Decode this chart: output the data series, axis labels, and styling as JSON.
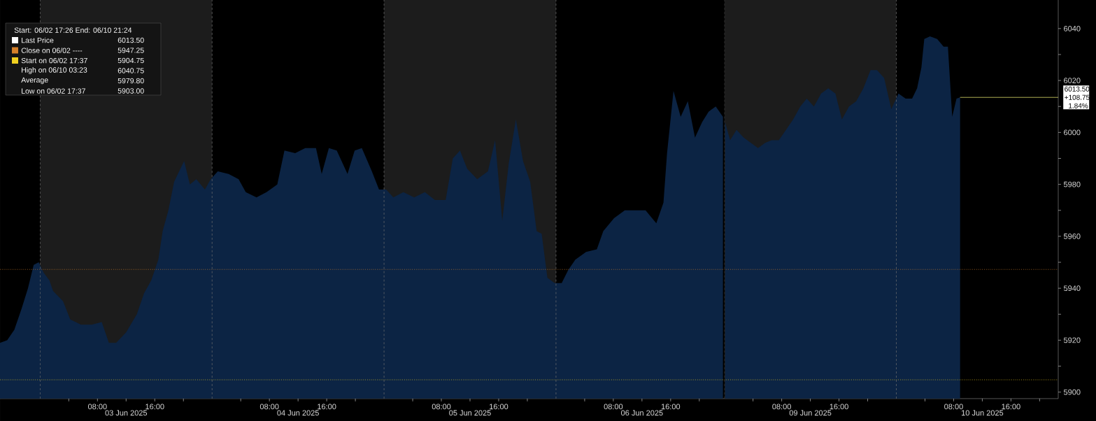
{
  "chart_data": [
    {
      "type": "area",
      "x": [
        "2025-06-02T18:24",
        "2025-06-02T19:24",
        "2025-06-02T20:24",
        "2025-06-02T21:24",
        "2025-06-02T22:18",
        "2025-06-02T23:06",
        "2025-06-02T23:48",
        "2025-06-03T00:30",
        "2025-06-03T01:18",
        "2025-06-03T01:48",
        "2025-06-03T03:12",
        "2025-06-03T04:12",
        "2025-06-03T05:42",
        "2025-06-03T07:12",
        "2025-06-03T08:36",
        "2025-06-03T09:36",
        "2025-06-03T10:36",
        "2025-06-03T12:00",
        "2025-06-03T13:30",
        "2025-06-03T14:30",
        "2025-06-03T15:30",
        "2025-06-03T16:30",
        "2025-06-03T17:06",
        "2025-06-03T17:54",
        "2025-06-03T18:42",
        "2025-06-03T19:24",
        "2025-06-03T20:06",
        "2025-06-03T20:54",
        "2025-06-03T21:48",
        "2025-06-03T23:00",
        "2025-06-03T23:48",
        "2025-06-04T00:48",
        "2025-06-04T02:18",
        "2025-06-04T03:42",
        "2025-06-04T04:42",
        "2025-06-04T06:12",
        "2025-06-04T07:36",
        "2025-06-04T09:06",
        "2025-06-04T10:06",
        "2025-06-04T11:36",
        "2025-06-04T13:00",
        "2025-06-04T14:30",
        "2025-06-04T15:18",
        "2025-06-04T16:18",
        "2025-06-04T17:24",
        "2025-06-04T18:54",
        "2025-06-04T19:54",
        "2025-06-04T20:54",
        "2025-06-04T22:18",
        "2025-06-04T23:18",
        "2025-06-05T00:18",
        "2025-06-05T01:18",
        "2025-06-05T02:42",
        "2025-06-05T04:12",
        "2025-06-05T05:42",
        "2025-06-05T07:06",
        "2025-06-05T08:36",
        "2025-06-05T09:36",
        "2025-06-05T10:36",
        "2025-06-05T11:36",
        "2025-06-05T13:00",
        "2025-06-05T14:30",
        "2025-06-05T15:30",
        "2025-06-05T16:30",
        "2025-06-05T17:24",
        "2025-06-05T18:24",
        "2025-06-05T19:24",
        "2025-06-05T20:24",
        "2025-06-05T21:18",
        "2025-06-05T22:00",
        "2025-06-05T22:48",
        "2025-06-05T23:48",
        "2025-06-06T00:48",
        "2025-06-06T01:42",
        "2025-06-06T02:42",
        "2025-06-06T04:12",
        "2025-06-06T05:42",
        "2025-06-06T06:36",
        "2025-06-06T08:06",
        "2025-06-06T09:36",
        "2025-06-06T11:06",
        "2025-06-06T12:30",
        "2025-06-06T14:00",
        "2025-06-06T15:00",
        "2025-06-06T15:30",
        "2025-06-06T16:24",
        "2025-06-06T17:24",
        "2025-06-06T18:24",
        "2025-06-06T19:24",
        "2025-06-06T20:24",
        "2025-06-06T21:18",
        "2025-06-06T22:18",
        "2025-06-06T23:18"
      ],
      "values": [
        5919,
        5920,
        5924,
        5932,
        5940,
        5949,
        5950,
        5946,
        5943,
        5939,
        5935,
        5928,
        5926,
        5926,
        5927,
        5919,
        5919,
        5923,
        5930,
        5938,
        5943,
        5951,
        5962,
        5970,
        5981,
        5985,
        5989,
        5980,
        5982,
        5978,
        5982,
        5985,
        5984,
        5982,
        5977,
        5975,
        5977,
        5980,
        5993,
        5992,
        5994,
        5994,
        5984,
        5994,
        5993,
        5984,
        5993,
        5994,
        5985,
        5978,
        5978,
        5975,
        5977,
        5975,
        5977,
        5974,
        5974,
        5990,
        5993,
        5986,
        5982,
        5985,
        5997,
        5966,
        5988,
        6005,
        5989,
        5981,
        5962,
        5961,
        5944,
        5942,
        5942,
        5947,
        5951,
        5954,
        5955,
        5962,
        5967,
        5970,
        5970,
        5970,
        5965,
        5973,
        5992,
        6016,
        6006,
        6012,
        5998,
        6004,
        6008,
        6010,
        6006
      ],
      "color": "#0c2444",
      "xlim": [
        "2025-06-02T18:24",
        "2025-06-06T23:30"
      ],
      "ylim": [
        5897.5,
        6051
      ],
      "tick_labels": "x",
      "xticks": [
        {
          "value": "2025-06-03T04:00",
          "label": null
        },
        {
          "value": "2025-06-03T08:00",
          "label": "08:00"
        },
        {
          "value": "2025-06-03T12:00",
          "label": null
        },
        {
          "value": "2025-06-03T16:00",
          "label": "16:00"
        },
        {
          "value": "2025-06-03T20:00",
          "label": null
        },
        {
          "value": "2025-06-04T04:00",
          "label": null
        },
        {
          "value": "2025-06-04T08:00",
          "label": "08:00"
        },
        {
          "value": "2025-06-04T12:00",
          "label": null
        },
        {
          "value": "2025-06-04T16:00",
          "label": "16:00"
        },
        {
          "value": "2025-06-04T20:00",
          "label": null
        },
        {
          "value": "2025-06-05T04:00",
          "label": null
        },
        {
          "value": "2025-06-05T08:00",
          "label": "08:00"
        },
        {
          "value": "2025-06-05T12:00",
          "label": null
        },
        {
          "value": "2025-06-05T16:00",
          "label": "16:00"
        },
        {
          "value": "2025-06-05T20:00",
          "label": null
        },
        {
          "value": "2025-06-06T04:00",
          "label": null
        },
        {
          "value": "2025-06-06T08:00",
          "label": "08:00"
        },
        {
          "value": "2025-06-06T12:00",
          "label": null
        },
        {
          "value": "2025-06-06T16:00",
          "label": "16:00"
        },
        {
          "value": "2025-06-06T20:00",
          "label": null
        }
      ],
      "x2lim": [
        "2025-06-02T18:24",
        "2025-06-06T23:30"
      ],
      "x2ticks": [
        {
          "value": "2025-06-03T12:00",
          "label": "03 Jun 2025"
        },
        {
          "value": "2025-06-04T12:00",
          "label": "04 Jun 2025"
        },
        {
          "value": "2025-06-05T12:00",
          "label": "05 Jun 2025"
        },
        {
          "value": "2025-06-06T12:00",
          "label": "06 Jun 2025"
        }
      ],
      "bands": [
        {
          "axis": "x",
          "from": "2025-06-03T00:00",
          "to": "2025-06-04T00:00",
          "color": "#1c1c1c"
        },
        {
          "axis": "x",
          "from": "2025-06-05T00:00",
          "to": "2025-06-06T00:00",
          "color": "#1c1c1c"
        }
      ],
      "ref_lines": [
        {
          "axis": "y",
          "value": 5947.25,
          "color": "#d4802a",
          "line_style": "dotted"
        },
        {
          "axis": "y",
          "value": 5904.75,
          "color": "#f0d020",
          "line_style": "dotted"
        },
        {
          "axis": "x",
          "value": "2025-06-03T00:00",
          "color": "#707070",
          "line_style": "dashed"
        },
        {
          "axis": "x",
          "value": "2025-06-04T00:00",
          "color": "#707070",
          "line_style": "dashed"
        },
        {
          "axis": "x",
          "value": "2025-06-05T00:00",
          "color": "#707070",
          "line_style": "dashed"
        },
        {
          "axis": "x",
          "value": "2025-06-06T00:00",
          "color": "#707070",
          "line_style": "dashed"
        }
      ],
      "annotations": [
        "Start: 06/02 17:26 End: 06/10 21:24",
        "Last Price",
        "6013.50",
        "Close on 06/02 ----",
        "5947.25",
        "Start on 06/02 17:37",
        "5904.75",
        "High on 06/10 03:23",
        "6040.75",
        "Average",
        "5979.80",
        "Low on 06/02 17:37",
        "5903.00"
      ]
    },
    {
      "type": "area",
      "x": [
        "2025-06-09T00:06",
        "2025-06-09T00:48",
        "2025-06-09T01:42",
        "2025-06-09T02:42",
        "2025-06-09T03:42",
        "2025-06-09T04:42",
        "2025-06-09T05:42",
        "2025-06-09T06:36",
        "2025-06-09T07:36",
        "2025-06-09T08:36",
        "2025-06-09T09:36",
        "2025-06-09T10:36",
        "2025-06-09T11:30",
        "2025-06-09T12:30",
        "2025-06-09T13:30",
        "2025-06-09T14:30",
        "2025-06-09T15:30",
        "2025-06-09T16:24",
        "2025-06-09T17:24",
        "2025-06-09T18:24",
        "2025-06-09T19:24",
        "2025-06-09T20:24",
        "2025-06-09T21:18",
        "2025-06-09T22:18",
        "2025-06-09T23:18",
        "2025-06-10T00:18",
        "2025-06-10T01:18",
        "2025-06-10T02:12",
        "2025-06-10T02:54",
        "2025-06-10T03:30",
        "2025-06-10T03:54",
        "2025-06-10T04:42",
        "2025-06-10T05:42",
        "2025-06-10T06:36",
        "2025-06-10T07:12",
        "2025-06-10T07:48",
        "2025-06-10T08:24",
        "2025-06-10T08:54"
      ],
      "values": [
        6004,
        5997,
        6001,
        5998,
        5996,
        5994,
        5996,
        5997,
        5997,
        6001,
        6005,
        6010,
        6013,
        6010,
        6015,
        6017,
        6015,
        6005,
        6010,
        6012,
        6017,
        6024,
        6024,
        6021,
        6009,
        6015,
        6013,
        6013,
        6017,
        6025,
        6036,
        6037,
        6036,
        6033,
        6033,
        6006,
        6013,
        6013.5
      ],
      "color": "#0c2444",
      "xlim": [
        "2025-06-09T00:00",
        "2025-06-10T22:36"
      ],
      "ylim": [
        5897.5,
        6051
      ],
      "xticks": [
        {
          "value": "2025-06-09T04:00",
          "label": null
        },
        {
          "value": "2025-06-09T08:00",
          "label": "08:00"
        },
        {
          "value": "2025-06-09T12:00",
          "label": null
        },
        {
          "value": "2025-06-09T16:00",
          "label": "16:00"
        },
        {
          "value": "2025-06-09T20:00",
          "label": null
        },
        {
          "value": "2025-06-10T04:00",
          "label": null
        },
        {
          "value": "2025-06-10T08:00",
          "label": "08:00"
        },
        {
          "value": "2025-06-10T12:00",
          "label": null
        },
        {
          "value": "2025-06-10T16:00",
          "label": "16:00"
        },
        {
          "value": "2025-06-10T20:00",
          "label": null
        }
      ],
      "x2lim": [
        "2025-06-09T00:00",
        "2025-06-10T22:36"
      ],
      "x2ticks": [
        {
          "value": "2025-06-09T12:00",
          "label": "09 Jun 2025"
        },
        {
          "value": "2025-06-10T12:00",
          "label": "10 Jun 2025"
        }
      ],
      "yticks": [
        5900,
        {
          "value": 5910,
          "label": null
        },
        5920,
        {
          "value": 5930,
          "label": null
        },
        5940,
        {
          "value": 5950,
          "label": null
        },
        5960,
        {
          "value": 5970,
          "label": null
        },
        5980,
        {
          "value": 5990,
          "label": null
        },
        6000,
        {
          "value": 6010,
          "label": null
        },
        6020,
        {
          "value": 6030,
          "label": null
        },
        6040
      ],
      "bands": [
        {
          "axis": "x",
          "from": "2025-06-09T00:00",
          "to": "2025-06-10T00:00",
          "color": "#1c1c1c"
        }
      ],
      "ref_lines": [
        {
          "axis": "y",
          "value": 5947.25,
          "color": "#d4802a",
          "line_style": "dotted"
        },
        {
          "axis": "y",
          "value": 5904.75,
          "color": "#f0d020",
          "line_style": "dotted"
        },
        {
          "axis": "y",
          "value": 6013.5,
          "label": "6013.50 +108.75 1.84%",
          "color": "#d8d86a",
          "line_style": "solid"
        },
        {
          "axis": "x",
          "value": "2025-06-09T00:00",
          "color": "#707070",
          "line_style": "dashed"
        },
        {
          "axis": "x",
          "value": "2025-06-10T00:00",
          "color": "#707070",
          "line_style": "dashed"
        }
      ]
    }
  ]
}
